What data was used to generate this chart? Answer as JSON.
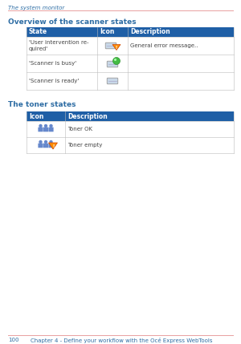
{
  "page_header": "The system monitor",
  "header_color": "#2e6da4",
  "header_line_color": "#e8a0a0",
  "section1_title": "Overview of the scanner states",
  "section2_title": "The toner states",
  "table1_headers": [
    "State",
    "Icon",
    "Description"
  ],
  "table1_rows": [
    [
      "'User intervention re-\nquired'",
      "",
      "General error message.."
    ],
    [
      "'Scanner is busy'",
      "",
      ""
    ],
    [
      "'Scanner is ready'",
      "",
      ""
    ]
  ],
  "table2_headers": [
    "Icon",
    "Description"
  ],
  "table2_rows": [
    [
      "",
      "Toner OK"
    ],
    [
      "",
      "Toner empty"
    ]
  ],
  "table_header_bg": "#1f5fa6",
  "table_header_text": "#ffffff",
  "table_border_color": "#bbbbbb",
  "body_text_color": "#444444",
  "footer_text_page": "100",
  "footer_text_chapter": "Chapter 4 - Define your workflow with the Océ Express WebTools",
  "footer_line_color": "#e8a0a0",
  "bg_color": "#ffffff",
  "font_size_header": 5.0,
  "font_size_section": 6.5,
  "font_size_table": 5.5,
  "font_size_footer": 5.0
}
